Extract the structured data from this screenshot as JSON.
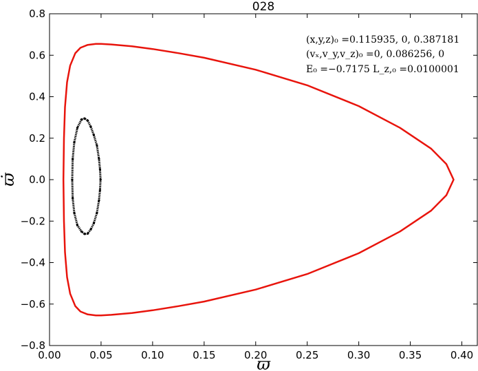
{
  "chart_data": {
    "type": "line",
    "title": "028",
    "xlabel": "ϖ",
    "ylabel": "ϖ̇",
    "xlim": [
      0.0,
      0.415
    ],
    "ylim": [
      -0.8,
      0.8
    ],
    "xticks": [
      "0.00",
      "0.05",
      "0.10",
      "0.15",
      "0.20",
      "0.25",
      "0.30",
      "0.35",
      "0.40"
    ],
    "xtick_values": [
      0.0,
      0.05,
      0.1,
      0.15,
      0.2,
      0.25,
      0.3,
      0.35,
      0.4
    ],
    "yticks": [
      "−0.8",
      "−0.6",
      "−0.4",
      "−0.2",
      "0.0",
      "0.2",
      "0.4",
      "0.6",
      "0.8"
    ],
    "ytick_values": [
      -0.8,
      -0.6,
      -0.4,
      -0.2,
      0.0,
      0.2,
      0.4,
      0.6,
      0.8
    ],
    "grid": false,
    "annotations": [
      "(x,y,z)₀ =0.115935, 0, 0.387181",
      "(vₓ,v_y,v_z)₀ =0, 0.086256, 0",
      "E₀ =−0.7175  L_z,₀ =0.0100001"
    ],
    "series": [
      {
        "style": "zero-velocity curve",
        "color": "#e8140c",
        "x": [
          0.0135,
          0.014,
          0.015,
          0.017,
          0.02,
          0.025,
          0.03,
          0.037,
          0.045,
          0.05,
          0.06,
          0.08,
          0.1,
          0.125,
          0.15,
          0.2,
          0.25,
          0.3,
          0.34,
          0.37,
          0.385,
          0.392,
          0.385,
          0.37,
          0.34,
          0.3,
          0.25,
          0.2,
          0.15,
          0.125,
          0.1,
          0.08,
          0.06,
          0.05,
          0.045,
          0.037,
          0.03,
          0.025,
          0.02,
          0.017,
          0.015,
          0.014,
          0.0135
        ],
        "y": [
          0.0,
          0.2,
          0.35,
          0.47,
          0.55,
          0.61,
          0.636,
          0.65,
          0.655,
          0.655,
          0.652,
          0.643,
          0.63,
          0.61,
          0.588,
          0.53,
          0.455,
          0.355,
          0.25,
          0.15,
          0.075,
          0.0,
          -0.075,
          -0.15,
          -0.25,
          -0.355,
          -0.455,
          -0.53,
          -0.588,
          -0.61,
          -0.63,
          -0.643,
          -0.652,
          -0.655,
          -0.655,
          -0.65,
          -0.636,
          -0.61,
          -0.55,
          -0.47,
          -0.35,
          -0.2,
          0.0
        ]
      },
      {
        "style": "orbit points",
        "color": "#000000",
        "x": [
          0.022,
          0.0225,
          0.024,
          0.027,
          0.031,
          0.034,
          0.037,
          0.04,
          0.043,
          0.046,
          0.048,
          0.049,
          0.0495,
          0.049,
          0.048,
          0.046,
          0.043,
          0.04,
          0.037,
          0.034,
          0.031,
          0.027,
          0.024,
          0.0225,
          0.022
        ],
        "y": [
          0.0,
          0.1,
          0.18,
          0.25,
          0.29,
          0.295,
          0.285,
          0.255,
          0.215,
          0.165,
          0.1,
          0.05,
          0.0,
          -0.05,
          -0.1,
          -0.16,
          -0.21,
          -0.24,
          -0.26,
          -0.262,
          -0.25,
          -0.22,
          -0.16,
          -0.09,
          0.0
        ]
      }
    ]
  }
}
